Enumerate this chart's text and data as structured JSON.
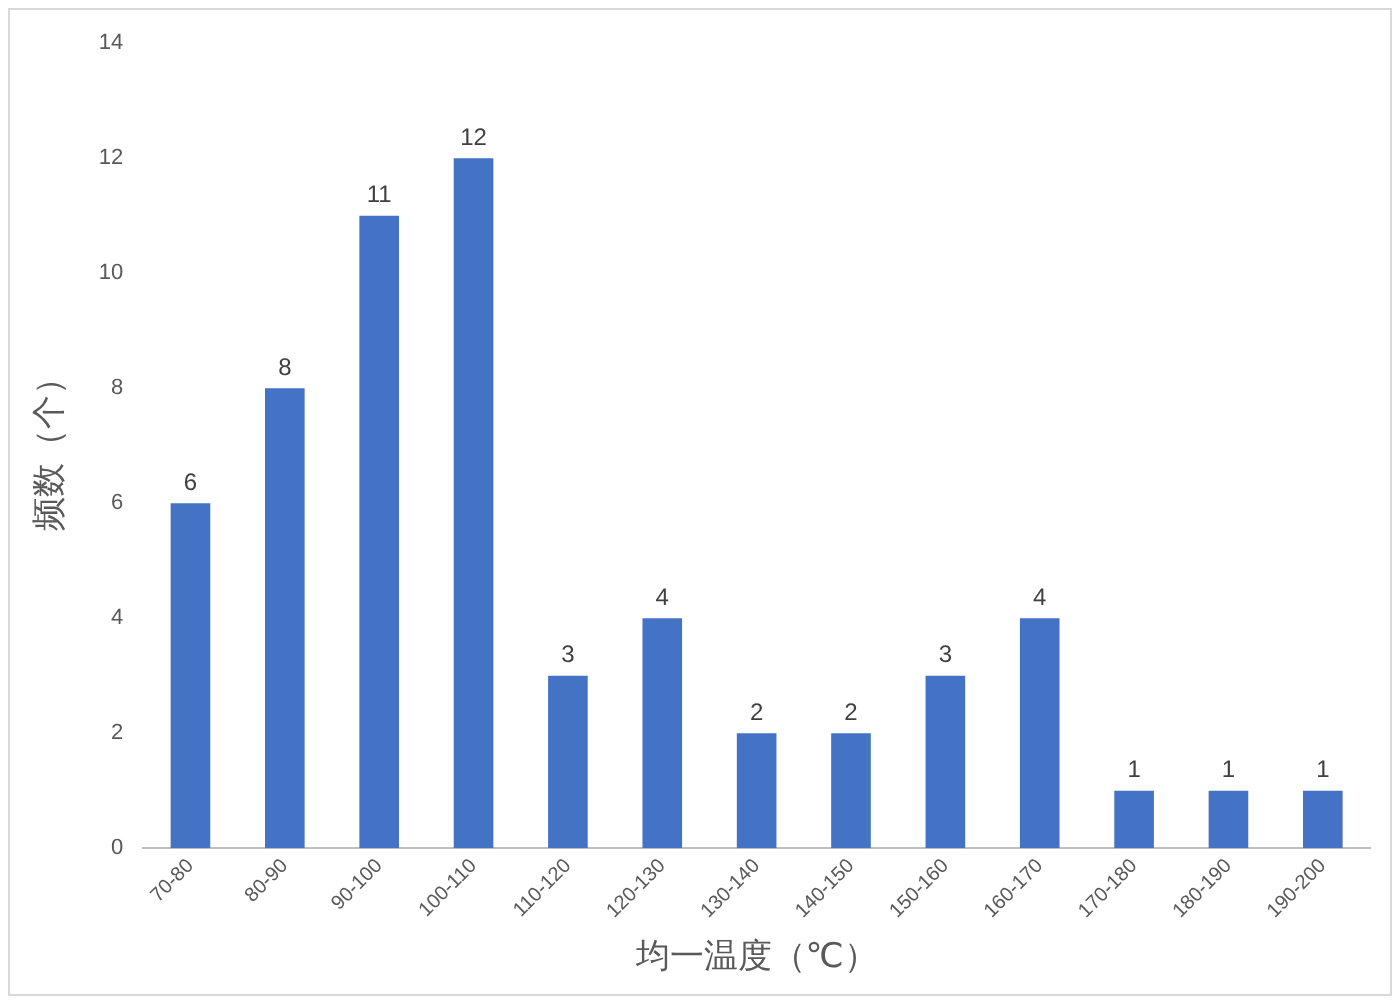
{
  "chart_data": {
    "type": "bar",
    "xlabel": "均一温度（℃）",
    "ylabel": "频数（个）",
    "categories": [
      "70-80",
      "80-90",
      "90-100",
      "100-110",
      "110-120",
      "120-130",
      "130-140",
      "140-150",
      "150-160",
      "160-170",
      "170-180",
      "180-190",
      "190-200"
    ],
    "values": [
      6,
      8,
      11,
      12,
      3,
      4,
      2,
      2,
      3,
      4,
      1,
      1,
      1
    ],
    "color": "#4472c4",
    "ylim": [
      0,
      14
    ],
    "yticks": [
      0,
      2,
      4,
      6,
      8,
      10,
      12,
      14
    ],
    "grid": false,
    "legend": false,
    "data_labels": true
  }
}
